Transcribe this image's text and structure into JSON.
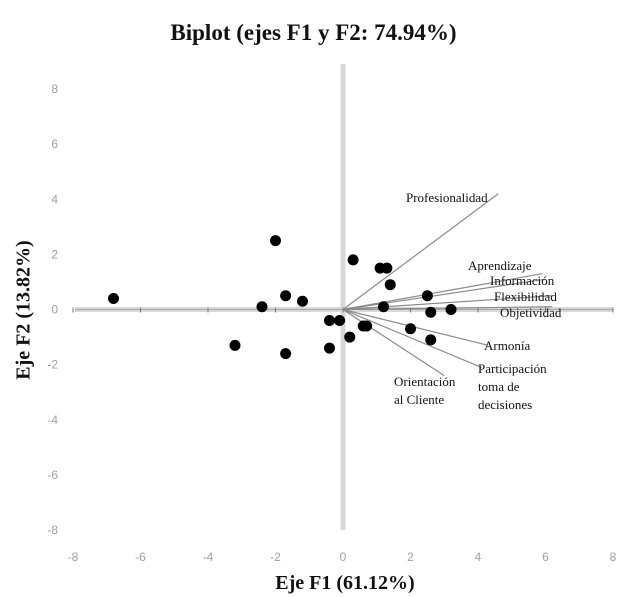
{
  "chart_data": {
    "type": "scatter",
    "title": "Biplot (ejes F1 y F2: 74.94%)",
    "xlabel": "Eje F1 (61.12%)",
    "ylabel": "Eje F2 (13.82%)",
    "xlim": [
      -8,
      8
    ],
    "ylim": [
      -8,
      8
    ],
    "xticks": [
      -8,
      -6,
      -4,
      -2,
      0,
      2,
      4,
      6,
      8
    ],
    "yticks": [
      8,
      6,
      4,
      2,
      0,
      -2,
      -4,
      -6,
      -8
    ],
    "grid": false,
    "observations": [
      {
        "x": -6.8,
        "y": 0.4
      },
      {
        "x": -3.2,
        "y": -1.3
      },
      {
        "x": -2.4,
        "y": 0.1
      },
      {
        "x": -2.0,
        "y": 2.5
      },
      {
        "x": -1.7,
        "y": 0.5
      },
      {
        "x": -1.7,
        "y": -1.6
      },
      {
        "x": -1.2,
        "y": 0.3
      },
      {
        "x": -0.4,
        "y": -0.4
      },
      {
        "x": -0.4,
        "y": -1.4
      },
      {
        "x": -0.1,
        "y": -0.4
      },
      {
        "x": 0.2,
        "y": -1.0
      },
      {
        "x": 0.3,
        "y": 1.8
      },
      {
        "x": 0.6,
        "y": -0.6
      },
      {
        "x": 0.7,
        "y": -0.6
      },
      {
        "x": 1.1,
        "y": 1.5
      },
      {
        "x": 1.3,
        "y": 1.5
      },
      {
        "x": 1.2,
        "y": 0.1
      },
      {
        "x": 1.4,
        "y": 0.9
      },
      {
        "x": 2.0,
        "y": -0.7
      },
      {
        "x": 2.5,
        "y": 0.5
      },
      {
        "x": 2.6,
        "y": -0.1
      },
      {
        "x": 2.6,
        "y": -1.1
      },
      {
        "x": 3.2,
        "y": 0.0
      }
    ],
    "variables": [
      {
        "name": "Profesionalidad",
        "x": 4.6,
        "y": 4.2
      },
      {
        "name": "Aprendizaje",
        "x": 5.9,
        "y": 1.3
      },
      {
        "name": "Información",
        "x": 6.0,
        "y": 1.1
      },
      {
        "name": "Flexibilidad",
        "x": 6.2,
        "y": 0.5
      },
      {
        "name": "Objetividad",
        "x": 6.2,
        "y": 0.1
      },
      {
        "name": "Armonía",
        "x": 4.3,
        "y": -1.3
      },
      {
        "name": "Participación toma de decisiones",
        "x": 4.1,
        "y": -2.1
      },
      {
        "name": "Orientación al Cliente",
        "x": 3.0,
        "y": -2.4
      }
    ],
    "variable_labels": [
      {
        "lines": [
          "Profesionalidad"
        ]
      },
      {
        "lines": [
          "Aprendizaje"
        ]
      },
      {
        "lines": [
          "Información"
        ]
      },
      {
        "lines": [
          "Flexibilidad"
        ]
      },
      {
        "lines": [
          "Objetividad"
        ]
      },
      {
        "lines": [
          "Armonía"
        ]
      },
      {
        "lines": [
          "Participación",
          "toma de",
          "decisiones"
        ]
      },
      {
        "lines": [
          "Orientación",
          "al Cliente"
        ]
      }
    ]
  },
  "colors": {
    "points": "#000000",
    "vectors": "#8a8a8a",
    "axes": "#d8d8d8",
    "ticks": "#a0a0a0"
  }
}
